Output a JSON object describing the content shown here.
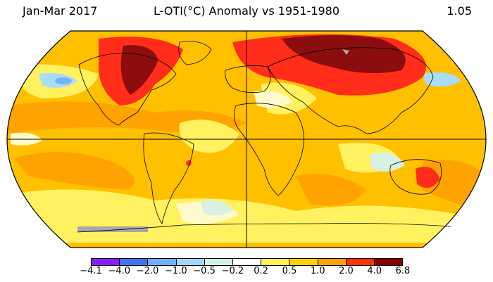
{
  "header": {
    "period": "Jan-Mar 2017",
    "title": "L-OTI(°C) Anomaly vs 1951-1980",
    "global_mean": "1.05"
  },
  "legend": {
    "ticks": [
      "−4.1",
      "−4.0",
      "−2.0",
      "−1.0",
      "−0.5",
      "−0.2",
      "0.2",
      "0.5",
      "1.0",
      "2.0",
      "4.0",
      "6.8"
    ],
    "colors": [
      "#8a1aff",
      "#3f76f0",
      "#6db0f7",
      "#9dd9f7",
      "#d4f1e9",
      "#ffffff",
      "#fff54d",
      "#ffd200",
      "#ffa300",
      "#ff3300",
      "#8a0000"
    ]
  },
  "map": {
    "projection": "Robinson",
    "colors": {
      "ocean_base": "#ffc000",
      "orange": "#ffa300",
      "light_orange": "#ffb200",
      "yellow": "#fff160",
      "pale": "#fffacd",
      "light_blue": "#a9dcf6",
      "mid_blue": "#74b6f2",
      "mint": "#d7f2e4",
      "red": "#ff2d1a",
      "dark_red": "#8b0d0d",
      "gray_missing": "#a8a8a8"
    }
  }
}
